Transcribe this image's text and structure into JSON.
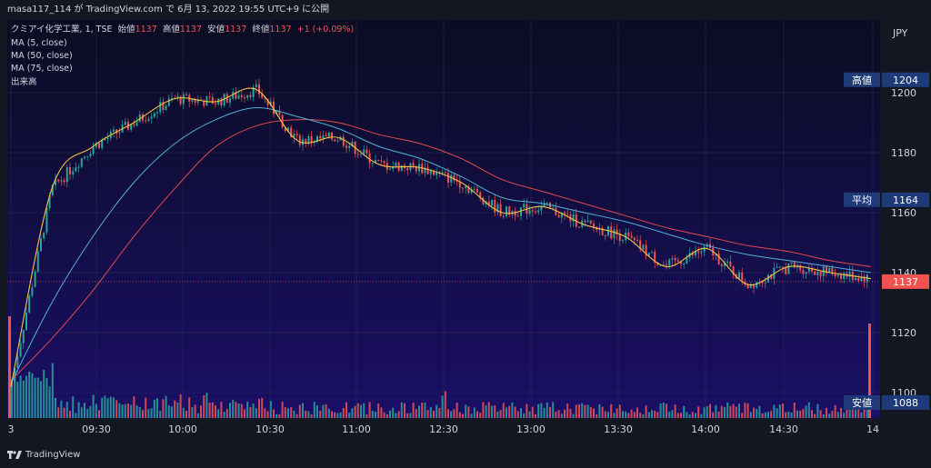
{
  "header": {
    "publish_line": "masa117_114 が TradingView.com で 6月 13, 2022 19:55 UTC+9 に公開"
  },
  "legend": {
    "symbol_line": "クミアイ化学工業, 1, TSE",
    "ohlc": [
      {
        "label": "始値",
        "value": "1137"
      },
      {
        "label": "高値",
        "value": "1137"
      },
      {
        "label": "安値",
        "value": "1137"
      },
      {
        "label": "終値",
        "value": "1137"
      }
    ],
    "change": "+1 (+0.09%)",
    "ma_lines": [
      "MA (5, close)",
      "MA (50, close)",
      "MA (75, close)"
    ],
    "volume_label": "出来高"
  },
  "price_axis": {
    "currency": "JPY",
    "ticks": [
      "1200",
      "1180",
      "1160",
      "1140",
      "1120",
      "1100"
    ],
    "markers": [
      {
        "label": "高値",
        "value": "1204",
        "price": 1204
      },
      {
        "label": "平均",
        "value": "1164",
        "price": 1164
      },
      {
        "label": "安値",
        "value": "1088",
        "price": 1088
      }
    ],
    "last_price": {
      "value": "1137",
      "price": 1137
    }
  },
  "time_axis": {
    "ticks": [
      "3",
      "09:30",
      "10:00",
      "10:30",
      "11:00",
      "12:30",
      "13:00",
      "13:30",
      "14:00",
      "14:30",
      "14"
    ]
  },
  "footer": {
    "brand": "TradingView"
  },
  "colors": {
    "background": "#131722",
    "up": "#26a69a",
    "down": "#ef5350",
    "ma5": "#f5c242",
    "ma50": "#4fb3d9",
    "ma75": "#e04a4a"
  },
  "chart_data": {
    "type": "line",
    "ylim": [
      1088,
      1210
    ],
    "x": [
      "09:00",
      "09:15",
      "09:30",
      "09:45",
      "10:00",
      "10:15",
      "10:30",
      "10:45",
      "11:00",
      "11:15",
      "11:30",
      "12:30",
      "12:45",
      "13:00",
      "13:15",
      "13:30",
      "13:45",
      "14:00",
      "14:15",
      "14:30",
      "14:45",
      "15:00"
    ],
    "series": [
      {
        "name": "MA (5, close)",
        "values": [
          1102,
          1168,
          1182,
          1190,
          1198,
          1197,
          1201,
          1184,
          1185,
          1176,
          1175,
          1170,
          1160,
          1162,
          1156,
          1152,
          1142,
          1148,
          1136,
          1142,
          1140,
          1138
        ]
      },
      {
        "name": "MA (50, close)",
        "values": [
          1103,
          1130,
          1152,
          1170,
          1183,
          1191,
          1195,
          1192,
          1188,
          1182,
          1178,
          1172,
          1165,
          1163,
          1160,
          1157,
          1153,
          1149,
          1146,
          1144,
          1142,
          1140
        ]
      },
      {
        "name": "MA (75, close)",
        "values": [
          1104,
          1118,
          1134,
          1152,
          1168,
          1182,
          1189,
          1191,
          1190,
          1186,
          1183,
          1178,
          1171,
          1167,
          1163,
          1159,
          1155,
          1152,
          1149,
          1147,
          1144,
          1142
        ]
      }
    ]
  }
}
